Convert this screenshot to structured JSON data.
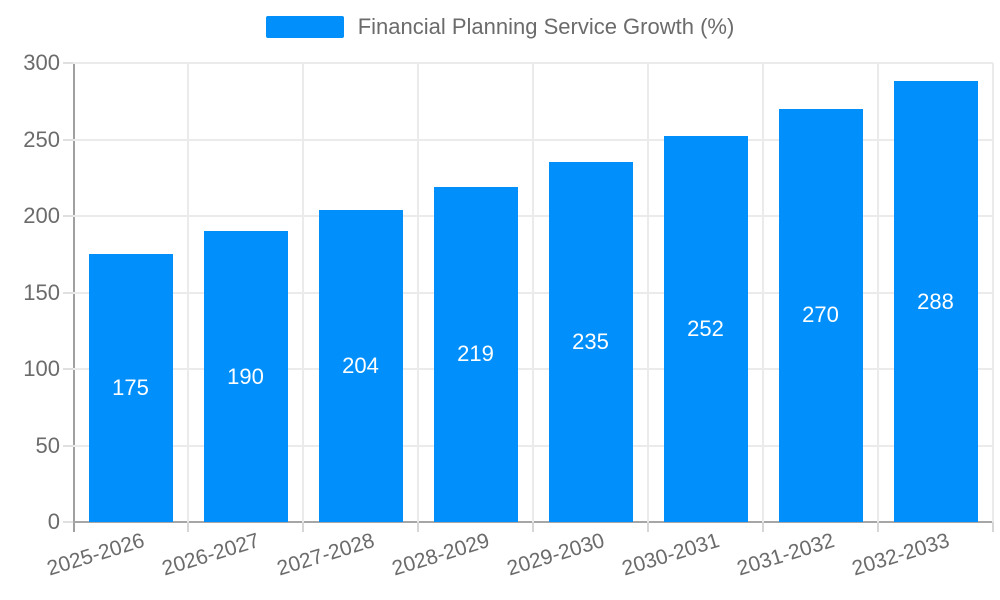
{
  "legend": {
    "label": "Financial Planning Service Growth (%)"
  },
  "chart_data": {
    "type": "bar",
    "title": "Financial Planning Service Growth (%)",
    "series_name": "Financial Planning Service Growth (%)",
    "categories": [
      "2025-2026",
      "2026-2027",
      "2027-2028",
      "2028-2029",
      "2029-2030",
      "2030-2031",
      "2031-2032",
      "2032-2033"
    ],
    "values": [
      175,
      190,
      204,
      219,
      235,
      252,
      270,
      288
    ],
    "ylim": [
      0,
      300
    ],
    "yticks": [
      0,
      50,
      100,
      150,
      200,
      250,
      300
    ],
    "grid": true,
    "legend_position": "top",
    "x_label_rotation": -17,
    "colors": {
      "bar": "#008FFB",
      "bar_value_text": "#ffffff",
      "axis_text": "#6b6b6b",
      "gridline": "#ebebeb",
      "axis_line": "#a0a0a0"
    }
  }
}
